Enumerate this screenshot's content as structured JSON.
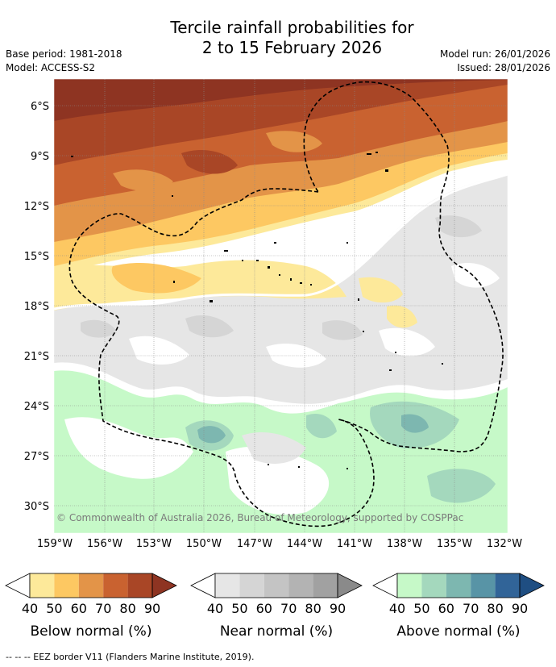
{
  "title": {
    "line1": "Tercile rainfall probabilities for",
    "line2": "2 to 15 February 2026"
  },
  "meta": {
    "base_period": "Base period: 1981-2018",
    "model": "Model: ACCESS-S2",
    "model_run": "Model run: 26/01/2026",
    "issued": "Issued: 28/01/2026"
  },
  "map": {
    "lat_labels": [
      "6°S",
      "9°S",
      "12°S",
      "15°S",
      "18°S",
      "21°S",
      "24°S",
      "27°S",
      "30°S"
    ],
    "lon_labels": [
      "159°W",
      "156°W",
      "153°W",
      "150°W",
      "147°W",
      "144°W",
      "141°W",
      "138°W",
      "135°W",
      "132°W"
    ],
    "copyright": "© Commonwealth of Australia 2026, Bureau of Meteorology, supported by COSPPac",
    "colors": {
      "ocean_white": "#ffffff",
      "land": "#000000"
    }
  },
  "colorbars": [
    {
      "title": "Below normal (%)",
      "ticks": [
        "40",
        "50",
        "60",
        "70",
        "80",
        "90"
      ],
      "colors": [
        "#ffffff",
        "#fde99a",
        "#fdc862",
        "#e39448",
        "#c96230",
        "#a94626",
        "#8e3422"
      ]
    },
    {
      "title": "Near normal (%)",
      "ticks": [
        "40",
        "50",
        "60",
        "70",
        "80",
        "90"
      ],
      "colors": [
        "#ffffff",
        "#e6e6e6",
        "#d5d5d5",
        "#c4c4c4",
        "#b3b3b3",
        "#a1a1a1",
        "#8a8a8a"
      ]
    },
    {
      "title": "Above normal (%)",
      "ticks": [
        "40",
        "50",
        "60",
        "70",
        "80",
        "90"
      ],
      "colors": [
        "#ffffff",
        "#c6f9c8",
        "#a4d8bd",
        "#7db7b0",
        "#5894a6",
        "#316498",
        "#1f4e82"
      ]
    }
  ],
  "footnote": "--  --  -- EEZ border V11 (Flanders Marine Institute, 2019)."
}
